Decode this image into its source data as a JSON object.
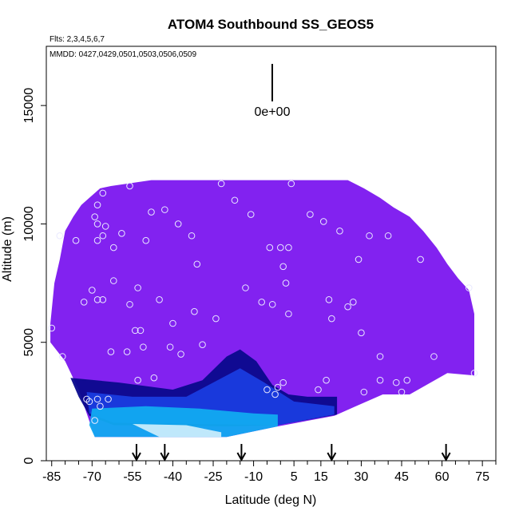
{
  "chart_data": {
    "type": "heatmap",
    "title": "ATOM4 Southbound SS_GEOS5",
    "flights_note": "Flts: 2,3,4,5,6,7",
    "dates_note": "MMDD: 0427,0429,0501,0503,0506,0509",
    "xlabel": "Latitude (deg N)",
    "ylabel": "Altitude (m)",
    "xlim": [
      -87,
      80
    ],
    "ylim": [
      0,
      17500
    ],
    "x_ticks": [
      -85,
      -70,
      -55,
      -40,
      -25,
      -10,
      5,
      15,
      30,
      45,
      60,
      75
    ],
    "y_ticks": [
      0,
      5000,
      10000,
      15000
    ],
    "x_tick_labels": [
      "-85",
      "-70",
      "-55",
      "-40",
      "-25",
      "-10",
      "5",
      "15",
      "30",
      "45",
      "60",
      "75"
    ],
    "y_tick_labels": [
      "0",
      "5000",
      "10000",
      "15000"
    ],
    "scale_marker_label": "0e+00",
    "grid": false,
    "legend": "none",
    "colors": {
      "background_field": "#8222f0",
      "deep_blue": "#0a0a8c",
      "mid_blue": "#1a3ce0",
      "cyan": "#11aaf0",
      "pale_cyan": "#c8ecfb",
      "observation_circle": "#e8e8ff"
    },
    "field_envelope": {
      "top_profile": [
        {
          "lat": -85.5,
          "alt": 5800
        },
        {
          "lat": -84,
          "alt": 7500
        },
        {
          "lat": -82,
          "alt": 8500
        },
        {
          "lat": -80,
          "alt": 9700
        },
        {
          "lat": -77,
          "alt": 10300
        },
        {
          "lat": -74,
          "alt": 10800
        },
        {
          "lat": -71,
          "alt": 11100
        },
        {
          "lat": -67,
          "alt": 11500
        },
        {
          "lat": -63,
          "alt": 11600
        },
        {
          "lat": -48,
          "alt": 11850
        },
        {
          "lat": 25,
          "alt": 11850
        },
        {
          "lat": 31,
          "alt": 11500
        },
        {
          "lat": 37,
          "alt": 11100
        },
        {
          "lat": 42,
          "alt": 10700
        },
        {
          "lat": 48,
          "alt": 10300
        },
        {
          "lat": 53,
          "alt": 9700
        },
        {
          "lat": 58,
          "alt": 9000
        },
        {
          "lat": 62,
          "alt": 8300
        },
        {
          "lat": 66,
          "alt": 7700
        },
        {
          "lat": 70,
          "alt": 7200
        },
        {
          "lat": 72,
          "alt": 6200
        },
        {
          "lat": 72,
          "alt": 3600
        }
      ],
      "bottom_profile": [
        {
          "lat": 72,
          "alt": 3600
        },
        {
          "lat": 62,
          "alt": 3700
        },
        {
          "lat": 48,
          "alt": 2800
        },
        {
          "lat": 38,
          "alt": 2800
        },
        {
          "lat": 28,
          "alt": 2300
        },
        {
          "lat": 20,
          "alt": 1900
        },
        {
          "lat": -1,
          "alt": 1450
        },
        {
          "lat": -20,
          "alt": 1000
        },
        {
          "lat": -27,
          "alt": 1000
        },
        {
          "lat": -62,
          "alt": 1000
        },
        {
          "lat": -69,
          "alt": 1000
        },
        {
          "lat": -72,
          "alt": 2000
        },
        {
          "lat": -75,
          "alt": 3000
        },
        {
          "lat": -80,
          "alt": 4200
        },
        {
          "lat": -85.5,
          "alt": 5000
        }
      ]
    },
    "concentration_bands": [
      {
        "level": "deep_blue",
        "polygon": [
          {
            "lat": -78,
            "alt": 3500
          },
          {
            "lat": -60,
            "alt": 3300
          },
          {
            "lat": -40,
            "alt": 3000
          },
          {
            "lat": -29,
            "alt": 3400
          },
          {
            "lat": -20,
            "alt": 4400
          },
          {
            "lat": -15,
            "alt": 4700
          },
          {
            "lat": -9,
            "alt": 4200
          },
          {
            "lat": -3,
            "alt": 3200
          },
          {
            "lat": 3,
            "alt": 2800
          },
          {
            "lat": 10,
            "alt": 2700
          },
          {
            "lat": 21,
            "alt": 2700
          },
          {
            "lat": 21,
            "alt": 1950
          },
          {
            "lat": -1,
            "alt": 1500
          },
          {
            "lat": -20,
            "alt": 1450
          },
          {
            "lat": -62,
            "alt": 1500
          },
          {
            "lat": -71,
            "alt": 1900
          },
          {
            "lat": -75,
            "alt": 2700
          }
        ]
      },
      {
        "level": "mid_blue",
        "polygon": [
          {
            "lat": -72,
            "alt": 2900
          },
          {
            "lat": -55,
            "alt": 2700
          },
          {
            "lat": -35,
            "alt": 2700
          },
          {
            "lat": -25,
            "alt": 3300
          },
          {
            "lat": -15,
            "alt": 3900
          },
          {
            "lat": -6,
            "alt": 3300
          },
          {
            "lat": 5,
            "alt": 2500
          },
          {
            "lat": 20,
            "alt": 2300
          },
          {
            "lat": 20,
            "alt": 1950
          },
          {
            "lat": -1,
            "alt": 1500
          },
          {
            "lat": -62,
            "alt": 1600
          },
          {
            "lat": -71,
            "alt": 2000
          }
        ]
      },
      {
        "level": "cyan",
        "polygon": [
          {
            "lat": -70,
            "alt": 2200
          },
          {
            "lat": -50,
            "alt": 2300
          },
          {
            "lat": -30,
            "alt": 2200
          },
          {
            "lat": -10,
            "alt": 2000
          },
          {
            "lat": -1,
            "alt": 1950
          },
          {
            "lat": -1,
            "alt": 1450
          },
          {
            "lat": -20,
            "alt": 1000
          },
          {
            "lat": -69,
            "alt": 1000
          },
          {
            "lat": -71,
            "alt": 1500
          }
        ]
      },
      {
        "level": "pale_cyan",
        "polygon": [
          {
            "lat": -55,
            "alt": 1550
          },
          {
            "lat": -35,
            "alt": 1500
          },
          {
            "lat": -22,
            "alt": 1200
          },
          {
            "lat": -22,
            "alt": 1000
          },
          {
            "lat": -45,
            "alt": 1000
          }
        ]
      }
    ],
    "observations": [
      {
        "lat": -85,
        "alt": 5600
      },
      {
        "lat": -82,
        "alt": 9500
      },
      {
        "lat": -81,
        "alt": 4400
      },
      {
        "lat": -76,
        "alt": 9300
      },
      {
        "lat": -73,
        "alt": 6700
      },
      {
        "lat": -72,
        "alt": 2600
      },
      {
        "lat": -71,
        "alt": 2500
      },
      {
        "lat": -70,
        "alt": 7200
      },
      {
        "lat": -69,
        "alt": 10300
      },
      {
        "lat": -69,
        "alt": 1700
      },
      {
        "lat": -68,
        "alt": 10800
      },
      {
        "lat": -68,
        "alt": 10000
      },
      {
        "lat": -68,
        "alt": 9300
      },
      {
        "lat": -68,
        "alt": 6800
      },
      {
        "lat": -68,
        "alt": 2600
      },
      {
        "lat": -67,
        "alt": 2300
      },
      {
        "lat": -66,
        "alt": 11300
      },
      {
        "lat": -66,
        "alt": 9500
      },
      {
        "lat": -66,
        "alt": 6800
      },
      {
        "lat": -65,
        "alt": 9900
      },
      {
        "lat": -64,
        "alt": 2600
      },
      {
        "lat": -63,
        "alt": 4600
      },
      {
        "lat": -62,
        "alt": 7600
      },
      {
        "lat": -62,
        "alt": 9000
      },
      {
        "lat": -59,
        "alt": 9600
      },
      {
        "lat": -57,
        "alt": 4600
      },
      {
        "lat": -56,
        "alt": 6600
      },
      {
        "lat": -56,
        "alt": 11600
      },
      {
        "lat": -54,
        "alt": 5500
      },
      {
        "lat": -53,
        "alt": 3400
      },
      {
        "lat": -53,
        "alt": 7300
      },
      {
        "lat": -52,
        "alt": 5500
      },
      {
        "lat": -51,
        "alt": 4800
      },
      {
        "lat": -50,
        "alt": 9300
      },
      {
        "lat": -48,
        "alt": 10500
      },
      {
        "lat": -47,
        "alt": 3500
      },
      {
        "lat": -45,
        "alt": 6800
      },
      {
        "lat": -43,
        "alt": 10600
      },
      {
        "lat": -41,
        "alt": 4800
      },
      {
        "lat": -40,
        "alt": 5800
      },
      {
        "lat": -38,
        "alt": 10000
      },
      {
        "lat": -37,
        "alt": 4500
      },
      {
        "lat": -33,
        "alt": 9500
      },
      {
        "lat": -32,
        "alt": 6300
      },
      {
        "lat": -31,
        "alt": 8300
      },
      {
        "lat": -29,
        "alt": 4900
      },
      {
        "lat": -24,
        "alt": 6000
      },
      {
        "lat": -22,
        "alt": 11700
      },
      {
        "lat": -17,
        "alt": 11000
      },
      {
        "lat": -13,
        "alt": 7300
      },
      {
        "lat": -11,
        "alt": 10400
      },
      {
        "lat": -7,
        "alt": 6700
      },
      {
        "lat": -5,
        "alt": 3000
      },
      {
        "lat": -4,
        "alt": 9000
      },
      {
        "lat": -3,
        "alt": 6600
      },
      {
        "lat": -2,
        "alt": 2800
      },
      {
        "lat": -1,
        "alt": 3100
      },
      {
        "lat": 0,
        "alt": 9000
      },
      {
        "lat": 1,
        "alt": 8200
      },
      {
        "lat": 1,
        "alt": 3300
      },
      {
        "lat": 2,
        "alt": 7500
      },
      {
        "lat": 3,
        "alt": 9000
      },
      {
        "lat": 3,
        "alt": 6200
      },
      {
        "lat": 4,
        "alt": 11700
      },
      {
        "lat": 11,
        "alt": 10400
      },
      {
        "lat": 14,
        "alt": 3000
      },
      {
        "lat": 16,
        "alt": 10100
      },
      {
        "lat": 17,
        "alt": 3400
      },
      {
        "lat": 18,
        "alt": 6800
      },
      {
        "lat": 19,
        "alt": 6000
      },
      {
        "lat": 22,
        "alt": 9700
      },
      {
        "lat": 25,
        "alt": 6500
      },
      {
        "lat": 27,
        "alt": 6700
      },
      {
        "lat": 29,
        "alt": 8500
      },
      {
        "lat": 30,
        "alt": 5400
      },
      {
        "lat": 31,
        "alt": 2900
      },
      {
        "lat": 33,
        "alt": 9500
      },
      {
        "lat": 37,
        "alt": 3400
      },
      {
        "lat": 37,
        "alt": 4400
      },
      {
        "lat": 40,
        "alt": 9500
      },
      {
        "lat": 43,
        "alt": 3300
      },
      {
        "lat": 45,
        "alt": 2900
      },
      {
        "lat": 47,
        "alt": 3400
      },
      {
        "lat": 52,
        "alt": 8500
      },
      {
        "lat": 57,
        "alt": 4400
      },
      {
        "lat": 70,
        "alt": 7300
      },
      {
        "lat": 72,
        "alt": 3700
      }
    ],
    "arrow_latitudes": [
      -53.5,
      -43,
      -14.5,
      19,
      61.5
    ]
  }
}
